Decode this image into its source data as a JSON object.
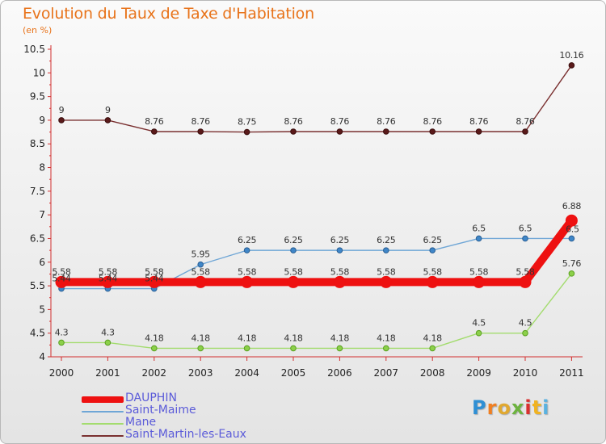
{
  "title": "Evolution du Taux de Taxe d'Habitation",
  "subtitle": "(en %)",
  "brand": {
    "letters": [
      "P",
      "r",
      "o",
      "x",
      "i",
      "t",
      "i"
    ],
    "colors": [
      "#2f8fd4",
      "#f07f22",
      "#e0a830",
      "#6db33f",
      "#d9302f",
      "#f0b322",
      "#5ab2e0"
    ]
  },
  "chart_data": {
    "type": "line",
    "x": [
      "2000",
      "2001",
      "2002",
      "2003",
      "2004",
      "2005",
      "2006",
      "2007",
      "2008",
      "2009",
      "2010",
      "2011"
    ],
    "ylim": [
      4,
      10.5
    ],
    "yticks": [
      "4",
      "4.5",
      "5",
      "5.5",
      "6",
      "6.5",
      "7",
      "7.5",
      "8",
      "8.5",
      "9",
      "9.5",
      "10",
      "10.5"
    ],
    "grid": false,
    "legend_position": "bottom-left",
    "series": [
      {
        "name": "DAUPHIN",
        "color": "#ee1111",
        "values": [
          5.58,
          5.58,
          5.58,
          5.58,
          5.58,
          5.58,
          5.58,
          5.58,
          5.58,
          5.58,
          5.58,
          6.88
        ],
        "labels": [
          "5.58",
          "5.58",
          "5.58",
          "5.58",
          "5.58",
          "5.58",
          "5.58",
          "5.58",
          "5.58",
          "5.58",
          "5.58",
          "6.88"
        ]
      },
      {
        "name": "Saint-Maime",
        "color": "#6fa6d6",
        "values": [
          5.44,
          5.44,
          5.44,
          5.95,
          6.25,
          6.25,
          6.25,
          6.25,
          6.25,
          6.5,
          6.5,
          6.5
        ],
        "labels": [
          "5.44",
          "5.44",
          "5.44",
          "5.95",
          "6.25",
          "6.25",
          "6.25",
          "6.25",
          "6.25",
          "6.5",
          "6.5",
          "6.5"
        ]
      },
      {
        "name": "Mane",
        "color": "#a3dc6e",
        "values": [
          4.3,
          4.3,
          4.18,
          4.18,
          4.18,
          4.18,
          4.18,
          4.18,
          4.18,
          4.5,
          4.5,
          5.76
        ],
        "labels": [
          "4.3",
          "4.3",
          "4.18",
          "4.18",
          "4.18",
          "4.18",
          "4.18",
          "4.18",
          "4.18",
          "4.5",
          "4.5",
          "5.76"
        ]
      },
      {
        "name": "Saint-Martin-les-Eaux",
        "color": "#7a3030",
        "values": [
          9,
          9,
          8.76,
          8.76,
          8.75,
          8.76,
          8.76,
          8.76,
          8.76,
          8.76,
          8.76,
          10.16
        ],
        "labels": [
          "9",
          "9",
          "8.76",
          "8.76",
          "8.75",
          "8.76",
          "8.76",
          "8.76",
          "8.76",
          "8.76",
          "8.76",
          "10.16"
        ]
      }
    ]
  }
}
